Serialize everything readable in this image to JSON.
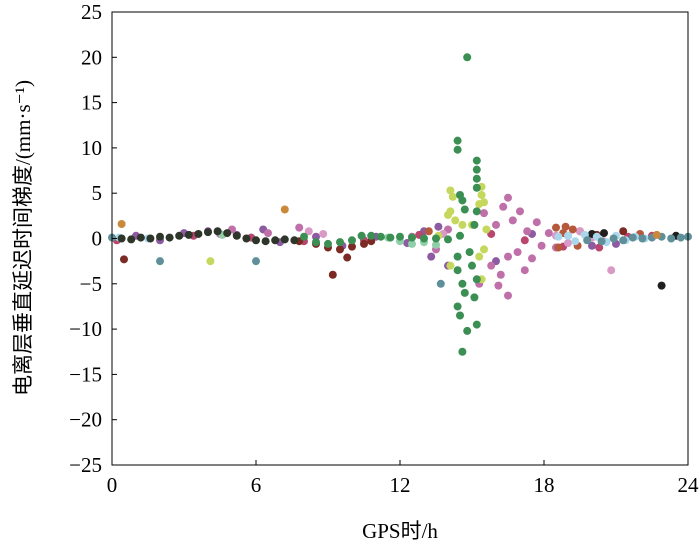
{
  "chart_data": {
    "type": "scatter",
    "title": "",
    "xlabel": "GPS时/h",
    "ylabel": "电离层垂直延迟时间梯度/(mm·s⁻¹)",
    "xlim": [
      0,
      24
    ],
    "ylim": [
      -25,
      25
    ],
    "xticks": [
      0,
      6,
      12,
      18,
      24
    ],
    "yticks": [
      -25,
      -20,
      -15,
      -10,
      -5,
      0,
      5,
      10,
      15,
      20,
      25
    ],
    "grid": false,
    "series": [
      {
        "name": "s-purple",
        "color": "#8c5ba2",
        "points": [
          [
            1.0,
            0.3
          ],
          [
            2.0,
            -0.2
          ],
          [
            3.0,
            0.6
          ],
          [
            4.0,
            0.8
          ],
          [
            5.2,
            0.4
          ],
          [
            6.3,
            1.0
          ],
          [
            7.0,
            -0.4
          ],
          [
            8.5,
            0.2
          ],
          [
            9.6,
            -0.8
          ],
          [
            11.0,
            0.2
          ],
          [
            12.3,
            -0.5
          ],
          [
            13.0,
            0.8
          ],
          [
            13.3,
            -2.0
          ],
          [
            13.6,
            1.3
          ],
          [
            14.0,
            -3.0
          ],
          [
            16.0,
            -2.5
          ],
          [
            17.5,
            0.5
          ],
          [
            20.0,
            -0.8
          ],
          [
            21.0,
            -0.6
          ]
        ]
      },
      {
        "name": "s-red",
        "color": "#b8466e",
        "points": [
          [
            0.2,
            -0.2
          ],
          [
            3.4,
            0.3
          ],
          [
            5.8,
            0.1
          ],
          [
            8.0,
            -0.3
          ],
          [
            10.5,
            -0.2
          ],
          [
            12.8,
            0.4
          ],
          [
            15.8,
            0.5
          ],
          [
            17.2,
            -0.2
          ],
          [
            18.8,
            -0.9
          ],
          [
            19.5,
            0.8
          ],
          [
            20.3,
            -1.0
          ],
          [
            21.5,
            0.2
          ],
          [
            22.5,
            0.3
          ]
        ]
      },
      {
        "name": "s-pink",
        "color": "#c070a8",
        "points": [
          [
            4.5,
            0.5
          ],
          [
            5.0,
            1.0
          ],
          [
            6.5,
            0.6
          ],
          [
            7.8,
            1.2
          ],
          [
            12.5,
            0.2
          ],
          [
            13.5,
            -1.2
          ],
          [
            14.0,
            1.0
          ],
          [
            15.5,
            2.8
          ],
          [
            15.8,
            -3.0
          ],
          [
            16.0,
            1.5
          ],
          [
            16.2,
            -4.0
          ],
          [
            16.3,
            3.5
          ],
          [
            16.5,
            4.5
          ],
          [
            16.5,
            -2.0
          ],
          [
            16.5,
            -6.3
          ],
          [
            16.7,
            2.0
          ],
          [
            16.9,
            -1.5
          ],
          [
            17.0,
            3.0
          ],
          [
            17.2,
            -3.5
          ],
          [
            17.3,
            0.8
          ],
          [
            17.5,
            -2.2
          ],
          [
            17.7,
            1.8
          ],
          [
            17.9,
            -0.8
          ],
          [
            18.2,
            0.6
          ],
          [
            18.5,
            -1.0
          ],
          [
            19.0,
            0.3
          ],
          [
            15.3,
            -5.0
          ],
          [
            16.1,
            -5.2
          ]
        ]
      },
      {
        "name": "s-lightpink",
        "color": "#d99ac6",
        "points": [
          [
            8.2,
            0.8
          ],
          [
            8.8,
            0.5
          ],
          [
            13.8,
            0.5
          ],
          [
            18.5,
            0.3
          ],
          [
            19.0,
            -0.5
          ],
          [
            19.5,
            0.8
          ],
          [
            20.0,
            0.1
          ],
          [
            20.5,
            -0.3
          ],
          [
            20.8,
            -3.5
          ]
        ]
      },
      {
        "name": "s-brown",
        "color": "#b5593a",
        "points": [
          [
            18.5,
            1.2
          ],
          [
            18.8,
            0.6
          ],
          [
            19.2,
            1.0
          ],
          [
            18.6,
            -1.0
          ],
          [
            19.4,
            -0.8
          ],
          [
            18.9,
            1.3
          ],
          [
            13.2,
            0.8
          ],
          [
            22.0,
            0.5
          ]
        ]
      },
      {
        "name": "s-darkred",
        "color": "#7b2b24",
        "points": [
          [
            0.5,
            -2.3
          ],
          [
            7.8,
            -0.3
          ],
          [
            8.5,
            -0.6
          ],
          [
            9.0,
            -1.0
          ],
          [
            9.2,
            -4.0
          ],
          [
            9.5,
            -1.2
          ],
          [
            9.8,
            -2.1
          ],
          [
            10.0,
            -0.9
          ],
          [
            10.5,
            -0.6
          ],
          [
            10.8,
            -0.3
          ],
          [
            20.2,
            0.4
          ],
          [
            21.3,
            0.8
          ]
        ]
      },
      {
        "name": "s-black",
        "color": "#1f1f1f",
        "points": [
          [
            20.5,
            0.6
          ],
          [
            20.0,
            0.5
          ],
          [
            22.9,
            -5.2
          ],
          [
            23.5,
            0.3
          ]
        ]
      },
      {
        "name": "s-lime",
        "color": "#c5d75c",
        "points": [
          [
            4.1,
            -2.5
          ],
          [
            13.6,
            0.3
          ],
          [
            14.0,
            2.6
          ],
          [
            14.1,
            5.3
          ],
          [
            14.2,
            4.6
          ],
          [
            14.1,
            3.0
          ],
          [
            14.3,
            2.0
          ],
          [
            14.1,
            -3.0
          ],
          [
            14.6,
            1.5
          ],
          [
            15.0,
            1.5
          ],
          [
            15.3,
            -2.0
          ],
          [
            15.3,
            3.8
          ],
          [
            15.4,
            5.7
          ],
          [
            15.4,
            4.8
          ],
          [
            15.5,
            4.0
          ],
          [
            15.4,
            -4.5
          ],
          [
            15.6,
            1.0
          ],
          [
            15.5,
            -1.2
          ]
        ]
      },
      {
        "name": "s-lightblue",
        "color": "#aad7ec",
        "points": [
          [
            0.3,
            0.1
          ],
          [
            1.5,
            0.0
          ],
          [
            18.6,
            0.2
          ],
          [
            19.0,
            0.3
          ],
          [
            19.3,
            -0.3
          ],
          [
            19.7,
            0.4
          ],
          [
            20.2,
            0.2
          ],
          [
            20.6,
            -0.4
          ],
          [
            21.0,
            0.3
          ],
          [
            21.4,
            -0.2
          ],
          [
            21.8,
            0.2
          ],
          [
            22.2,
            0.0
          ]
        ]
      },
      {
        "name": "s-teal",
        "color": "#5f9099",
        "points": [
          [
            2.0,
            -2.5
          ],
          [
            6.0,
            -2.5
          ],
          [
            13.7,
            -5.0
          ],
          [
            19.8,
            -0.2
          ],
          [
            20.4,
            -0.3
          ],
          [
            20.9,
            0.0
          ],
          [
            21.3,
            -0.2
          ],
          [
            21.7,
            0.1
          ],
          [
            22.1,
            0.0
          ],
          [
            22.5,
            0.1
          ],
          [
            22.9,
            0.2
          ],
          [
            23.3,
            0.0
          ],
          [
            23.7,
            0.1
          ],
          [
            24.0,
            0.2
          ],
          [
            0.0,
            0.1
          ]
        ]
      },
      {
        "name": "s-mint",
        "color": "#8fcfa8",
        "points": [
          [
            11.5,
            0.1
          ],
          [
            12.0,
            -0.3
          ],
          [
            12.5,
            -0.6
          ],
          [
            13.0,
            -0.4
          ],
          [
            13.5,
            -0.7
          ],
          [
            4.6,
            0.4
          ]
        ]
      },
      {
        "name": "s-orange",
        "color": "#c9883c",
        "points": [
          [
            7.2,
            3.2
          ],
          [
            0.4,
            1.6
          ],
          [
            22.7,
            0.4
          ]
        ]
      },
      {
        "name": "s-dark",
        "color": "#2e3629",
        "points": [
          [
            0.4,
            0.0
          ],
          [
            0.8,
            -0.1
          ],
          [
            1.2,
            0.1
          ],
          [
            1.6,
            0.0
          ],
          [
            2.0,
            0.2
          ],
          [
            2.4,
            0.1
          ],
          [
            2.8,
            0.3
          ],
          [
            3.2,
            0.4
          ],
          [
            3.6,
            0.5
          ],
          [
            4.0,
            0.7
          ],
          [
            4.4,
            0.8
          ],
          [
            4.8,
            0.6
          ],
          [
            5.2,
            0.3
          ],
          [
            5.6,
            0.0
          ],
          [
            6.0,
            -0.2
          ],
          [
            6.4,
            -0.3
          ],
          [
            6.8,
            -0.2
          ],
          [
            7.2,
            -0.1
          ],
          [
            7.6,
            -0.2
          ]
        ]
      },
      {
        "name": "s-green",
        "color": "#3b8f53",
        "points": [
          [
            8.0,
            0.2
          ],
          [
            8.5,
            -0.4
          ],
          [
            9.0,
            -0.6
          ],
          [
            9.5,
            -0.4
          ],
          [
            10.0,
            -0.2
          ],
          [
            10.4,
            0.3
          ],
          [
            10.8,
            0.3
          ],
          [
            11.2,
            0.2
          ],
          [
            11.6,
            0.1
          ],
          [
            12.0,
            0.2
          ],
          [
            12.5,
            0.1
          ],
          [
            13.0,
            0.0
          ],
          [
            13.5,
            0.0
          ],
          [
            14.0,
            -0.1
          ],
          [
            14.5,
            0.3
          ],
          [
            14.8,
            20.0
          ],
          [
            14.4,
            10.8
          ],
          [
            14.4,
            9.8
          ],
          [
            15.2,
            8.6
          ],
          [
            15.2,
            7.6
          ],
          [
            15.2,
            6.6
          ],
          [
            15.2,
            5.6
          ],
          [
            14.5,
            4.8
          ],
          [
            14.6,
            4.2
          ],
          [
            14.7,
            3.2
          ],
          [
            15.2,
            3.0
          ],
          [
            15.1,
            1.5
          ],
          [
            14.4,
            -2.0
          ],
          [
            14.4,
            -3.5
          ],
          [
            14.6,
            -5.0
          ],
          [
            14.7,
            -6.0
          ],
          [
            14.4,
            -7.5
          ],
          [
            14.5,
            -8.5
          ],
          [
            14.8,
            -10.2
          ],
          [
            15.2,
            -9.5
          ],
          [
            14.6,
            -12.5
          ],
          [
            15.1,
            -6.5
          ],
          [
            15.2,
            -4.5
          ],
          [
            15.0,
            -3.0
          ],
          [
            14.9,
            -1.5
          ]
        ]
      }
    ]
  }
}
